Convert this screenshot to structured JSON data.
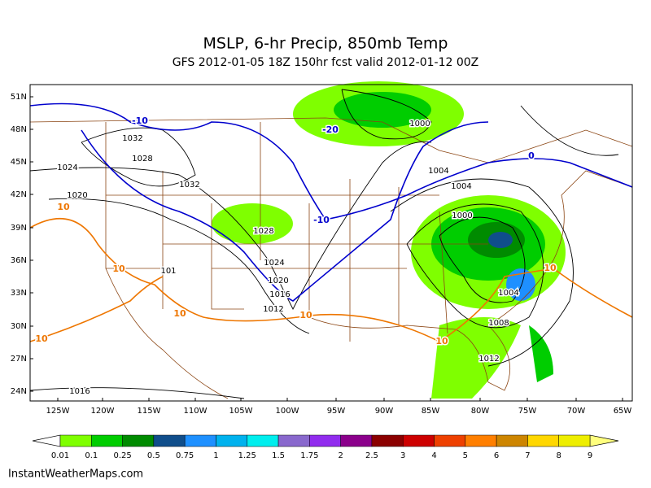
{
  "header": {
    "title": "MSLP, 6-hr Precip, 850mb Temp",
    "subtitle": "GFS 2012-01-05 18Z 150hr fcst valid 2012-01-12 00Z"
  },
  "map": {
    "lat_labels": [
      "51N",
      "48N",
      "45N",
      "42N",
      "39N",
      "36N",
      "33N",
      "30N",
      "27N",
      "24N"
    ],
    "lon_labels": [
      "125W",
      "120W",
      "115W",
      "110W",
      "105W",
      "100W",
      "95W",
      "90W",
      "85W",
      "80W",
      "75W",
      "70W",
      "65W"
    ],
    "isobar_labels": [
      "1000",
      "1032",
      "1028",
      "1024",
      "1032",
      "1004",
      "1004",
      "1020",
      "1000",
      "1028",
      "1024",
      "101",
      "1020",
      "1016",
      "1012",
      "1004",
      "1008",
      "1012",
      "1016"
    ],
    "cold_isotherm_labels": [
      "-10",
      "-20",
      "-10",
      "0"
    ],
    "warm_isotherm_labels": [
      "10",
      "10",
      "10",
      "10",
      "10",
      "10",
      "10"
    ]
  },
  "legend": {
    "labels": [
      "0.01",
      "0.1",
      "0.25",
      "0.5",
      "0.75",
      "1",
      "1.25",
      "1.5",
      "1.75",
      "2",
      "2.5",
      "3",
      "4",
      "5",
      "6",
      "7",
      "8",
      "9"
    ],
    "colors": [
      "#7fff00",
      "#00cd00",
      "#008b00",
      "#104e8b",
      "#1e90ff",
      "#00b2ee",
      "#00eeee",
      "#8968cd",
      "#912cee",
      "#8b008b",
      "#8b0000",
      "#cd0000",
      "#ee4000",
      "#ff7f00",
      "#cd8500",
      "#ffd700",
      "#eeee00"
    ]
  },
  "footer": {
    "credit": "InstantWeatherMaps.com"
  }
}
